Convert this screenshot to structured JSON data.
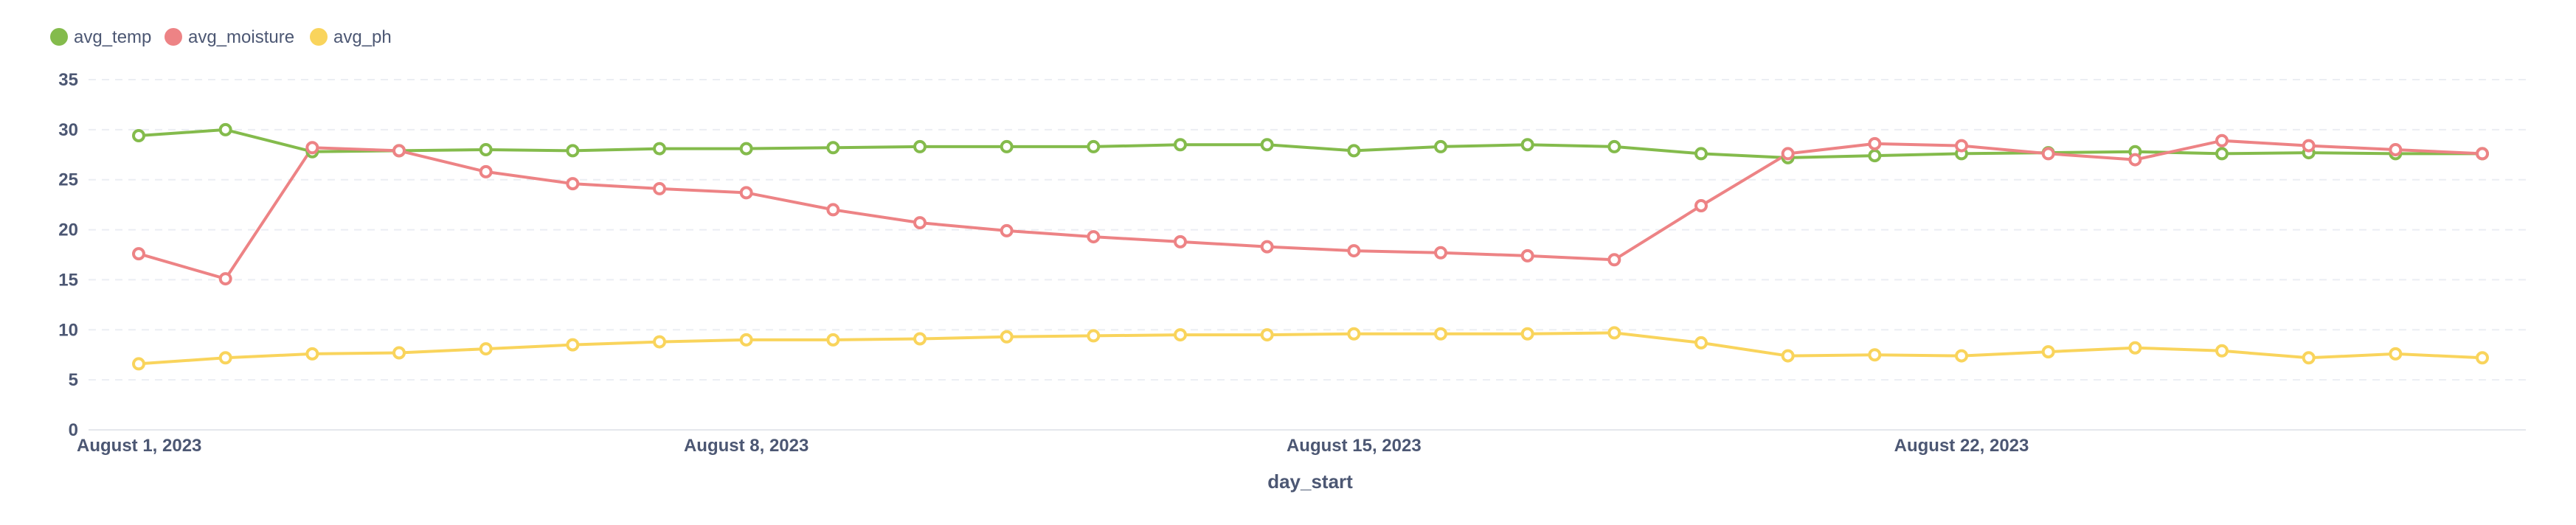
{
  "chart_data": {
    "type": "line",
    "xlabel": "day_start",
    "ylabel": "",
    "ylim": [
      0,
      35
    ],
    "yticks": [
      0,
      5,
      10,
      15,
      20,
      25,
      30,
      35
    ],
    "grid": true,
    "legend_position": "top-left",
    "x": [
      1,
      2,
      3,
      4,
      5,
      6,
      7,
      8,
      9,
      10,
      11,
      12,
      13,
      14,
      15,
      16,
      17,
      18,
      19,
      20,
      21,
      22,
      23,
      24,
      25,
      26,
      27,
      28
    ],
    "x_unit": "August 2023 (day of month)",
    "x_ticks": [
      {
        "x": 1,
        "label": "August 1, 2023"
      },
      {
        "x": 8,
        "label": "August 8, 2023"
      },
      {
        "x": 15,
        "label": "August 15, 2023"
      },
      {
        "x": 22,
        "label": "August 22, 2023"
      }
    ],
    "series": [
      {
        "name": "avg_temp",
        "color": "#84bb4c",
        "values": [
          29.4,
          30.0,
          27.8,
          27.9,
          28.0,
          27.9,
          28.1,
          28.1,
          28.2,
          28.3,
          28.3,
          28.3,
          28.5,
          28.5,
          27.9,
          28.3,
          28.5,
          28.3,
          27.6,
          27.2,
          27.4,
          27.6,
          27.7,
          27.8,
          27.6,
          27.7,
          27.6,
          27.6
        ]
      },
      {
        "name": "avg_moisture",
        "color": "#ed8385",
        "values": [
          17.6,
          15.1,
          28.2,
          27.9,
          25.8,
          24.6,
          24.1,
          23.7,
          22.0,
          20.7,
          19.9,
          19.3,
          18.8,
          18.3,
          17.9,
          17.7,
          17.4,
          17.0,
          22.4,
          27.6,
          28.6,
          28.4,
          27.6,
          27.0,
          28.9,
          28.4,
          28.0,
          27.6
        ]
      },
      {
        "name": "avg_ph",
        "color": "#f9d45c",
        "values": [
          6.6,
          7.2,
          7.6,
          7.7,
          8.1,
          8.5,
          8.8,
          9.0,
          9.0,
          9.1,
          9.3,
          9.4,
          9.5,
          9.5,
          9.6,
          9.6,
          9.6,
          9.7,
          8.7,
          7.4,
          7.5,
          7.4,
          7.8,
          8.2,
          7.9,
          7.2,
          7.6,
          7.2
        ]
      }
    ]
  },
  "colors": {
    "grid": "#ebeef3",
    "axis_text": "#4c5773",
    "point_fill": "#ffffff"
  }
}
